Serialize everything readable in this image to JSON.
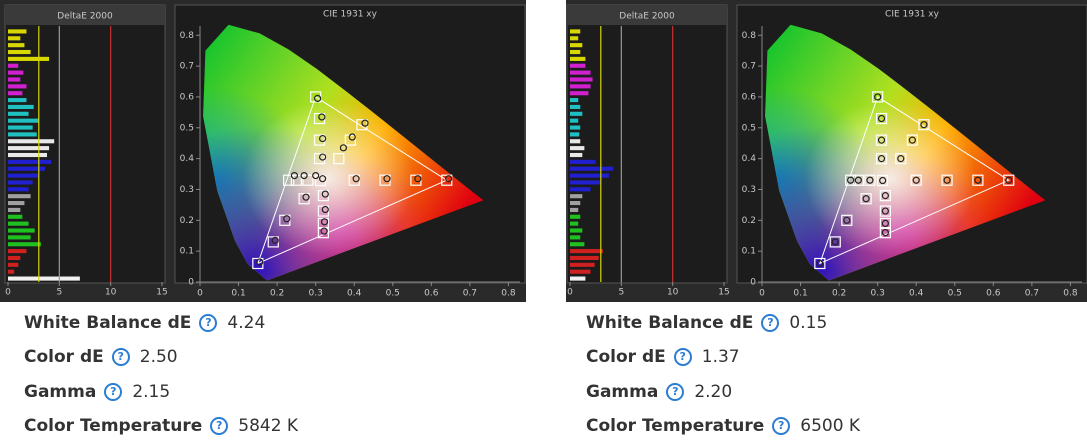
{
  "chart_data": [
    {
      "type": "bar",
      "orientation": "horizontal",
      "title": "DeltaE 2000",
      "values": [
        1.8,
        1.2,
        1.6,
        2.2,
        4.0,
        1.0,
        1.5,
        1.2,
        1.8,
        1.4,
        1.8,
        2.5,
        2.0,
        3.0,
        2.4,
        2.8,
        4.5,
        4.0,
        3.8,
        4.2,
        3.6,
        3.0,
        2.4,
        2.0,
        2.2,
        1.6,
        1.2,
        1.4,
        2.0,
        2.6,
        2.2,
        3.2,
        1.8,
        1.2,
        1.0,
        0.6,
        7.0
      ],
      "colors": [
        "#d8d800",
        "#d8d800",
        "#d8d800",
        "#d8d800",
        "#d8d800",
        "#d020d0",
        "#d020d0",
        "#d020d0",
        "#d020d0",
        "#d020d0",
        "#20c0c0",
        "#20c0c0",
        "#20c0c0",
        "#20c0c0",
        "#20c0c0",
        "#20c0c0",
        "#e8e8e8",
        "#e8e8e8",
        "#e8e8e8",
        "#2020d0",
        "#2020d0",
        "#2020d0",
        "#2020d0",
        "#2020d0",
        "#a0a0a0",
        "#a0a0a0",
        "#a0a0a0",
        "#20c020",
        "#20c020",
        "#20c020",
        "#20c020",
        "#20c020",
        "#d02020",
        "#d02020",
        "#d02020",
        "#d02020",
        "#f0f0f0"
      ],
      "xlim": [
        0,
        15
      ],
      "xticks": [
        0,
        5,
        10,
        15
      ],
      "reference_lines": [
        {
          "value": 3,
          "color": "#d8d800"
        },
        {
          "value": 5,
          "color": "#9a9a9a"
        },
        {
          "value": 10,
          "color": "#c83030"
        }
      ]
    },
    {
      "type": "scatter",
      "title": "CIE 1931 xy",
      "xlim": [
        0,
        0.83
      ],
      "ylim": [
        0,
        0.83
      ],
      "xticks": [
        0,
        0.1,
        0.2,
        0.3,
        0.4,
        0.5,
        0.6,
        0.7,
        0.8
      ],
      "yticks": [
        0,
        0.1,
        0.2,
        0.3,
        0.4,
        0.5,
        0.6,
        0.7,
        0.8
      ],
      "targets": {
        "x": [
          0.3127,
          0.4,
          0.48,
          0.56,
          0.64,
          0.31,
          0.31,
          0.31,
          0.3,
          0.27,
          0.22,
          0.19,
          0.15,
          0.28,
          0.25,
          0.23,
          0.32,
          0.32,
          0.32,
          0.32,
          0.36,
          0.39,
          0.42
        ],
        "y": [
          0.329,
          0.33,
          0.33,
          0.33,
          0.33,
          0.4,
          0.46,
          0.53,
          0.6,
          0.27,
          0.2,
          0.13,
          0.06,
          0.33,
          0.33,
          0.33,
          0.28,
          0.23,
          0.19,
          0.16,
          0.4,
          0.46,
          0.51
        ]
      },
      "measured": {
        "x": [
          0.318,
          0.405,
          0.485,
          0.565,
          0.645,
          0.318,
          0.318,
          0.316,
          0.305,
          0.275,
          0.225,
          0.195,
          0.155,
          0.3,
          0.27,
          0.245,
          0.325,
          0.325,
          0.323,
          0.322,
          0.372,
          0.395,
          0.428
        ],
        "y": [
          0.335,
          0.335,
          0.335,
          0.335,
          0.335,
          0.405,
          0.465,
          0.535,
          0.595,
          0.275,
          0.205,
          0.135,
          0.065,
          0.345,
          0.345,
          0.345,
          0.285,
          0.235,
          0.195,
          0.165,
          0.435,
          0.47,
          0.515
        ]
      }
    },
    {
      "type": "bar",
      "orientation": "horizontal",
      "title": "DeltaE 2000",
      "values": [
        1.0,
        0.8,
        1.2,
        1.0,
        1.5,
        1.5,
        2.0,
        2.2,
        2.0,
        1.8,
        0.8,
        1.0,
        1.2,
        0.8,
        1.0,
        0.9,
        1.0,
        1.4,
        1.2,
        2.5,
        4.2,
        3.8,
        3.0,
        2.0,
        1.2,
        1.0,
        0.8,
        1.0,
        0.8,
        1.2,
        1.0,
        1.4,
        3.2,
        2.8,
        2.4,
        2.0,
        1.5
      ],
      "colors": [
        "#d8d800",
        "#d8d800",
        "#d8d800",
        "#d8d800",
        "#d8d800",
        "#d020d0",
        "#d020d0",
        "#d020d0",
        "#d020d0",
        "#d020d0",
        "#20c0c0",
        "#20c0c0",
        "#20c0c0",
        "#20c0c0",
        "#20c0c0",
        "#20c0c0",
        "#e8e8e8",
        "#e8e8e8",
        "#e8e8e8",
        "#2020d0",
        "#2020d0",
        "#2020d0",
        "#2020d0",
        "#2020d0",
        "#a0a0a0",
        "#a0a0a0",
        "#a0a0a0",
        "#20c020",
        "#20c020",
        "#20c020",
        "#20c020",
        "#20c020",
        "#d02020",
        "#d02020",
        "#d02020",
        "#d02020",
        "#f0f0f0"
      ],
      "xlim": [
        0,
        15
      ],
      "xticks": [
        0,
        5,
        10,
        15
      ],
      "reference_lines": [
        {
          "value": 3,
          "color": "#d8d800"
        },
        {
          "value": 5,
          "color": "#9a9a9a"
        },
        {
          "value": 10,
          "color": "#c83030"
        }
      ]
    },
    {
      "type": "scatter",
      "title": "CIE 1931 xy",
      "xlim": [
        0,
        0.83
      ],
      "ylim": [
        0,
        0.83
      ],
      "xticks": [
        0,
        0.1,
        0.2,
        0.3,
        0.4,
        0.5,
        0.6,
        0.7,
        0.8
      ],
      "yticks": [
        0,
        0.1,
        0.2,
        0.3,
        0.4,
        0.5,
        0.6,
        0.7,
        0.8
      ],
      "targets": {
        "x": [
          0.3127,
          0.4,
          0.48,
          0.56,
          0.64,
          0.31,
          0.31,
          0.31,
          0.3,
          0.27,
          0.22,
          0.19,
          0.15,
          0.28,
          0.25,
          0.23,
          0.32,
          0.32,
          0.32,
          0.32,
          0.36,
          0.39,
          0.42
        ],
        "y": [
          0.329,
          0.33,
          0.33,
          0.33,
          0.33,
          0.4,
          0.46,
          0.53,
          0.6,
          0.27,
          0.2,
          0.13,
          0.06,
          0.33,
          0.33,
          0.33,
          0.28,
          0.23,
          0.19,
          0.16,
          0.4,
          0.46,
          0.51
        ]
      },
      "measured": {
        "x": [
          0.313,
          0.4,
          0.48,
          0.56,
          0.64,
          0.31,
          0.31,
          0.31,
          0.3,
          0.27,
          0.22,
          0.19,
          0.15,
          0.28,
          0.25,
          0.23,
          0.32,
          0.32,
          0.32,
          0.32,
          0.36,
          0.39,
          0.42
        ],
        "y": [
          0.329,
          0.33,
          0.33,
          0.33,
          0.33,
          0.4,
          0.46,
          0.53,
          0.6,
          0.27,
          0.2,
          0.13,
          0.06,
          0.33,
          0.33,
          0.33,
          0.28,
          0.23,
          0.19,
          0.16,
          0.4,
          0.46,
          0.51
        ]
      }
    }
  ],
  "panels": [
    {
      "stats": [
        {
          "label": "White Balance dE",
          "value": "4.24"
        },
        {
          "label": "Color dE",
          "value": "2.50"
        },
        {
          "label": "Gamma",
          "value": "2.15"
        },
        {
          "label": "Color Temperature",
          "value": "5842 K"
        }
      ]
    },
    {
      "stats": [
        {
          "label": "White Balance dE",
          "value": "0.15"
        },
        {
          "label": "Color dE",
          "value": "1.37"
        },
        {
          "label": "Gamma",
          "value": "2.20"
        },
        {
          "label": "Color Temperature",
          "value": "6500 K"
        }
      ]
    }
  ]
}
